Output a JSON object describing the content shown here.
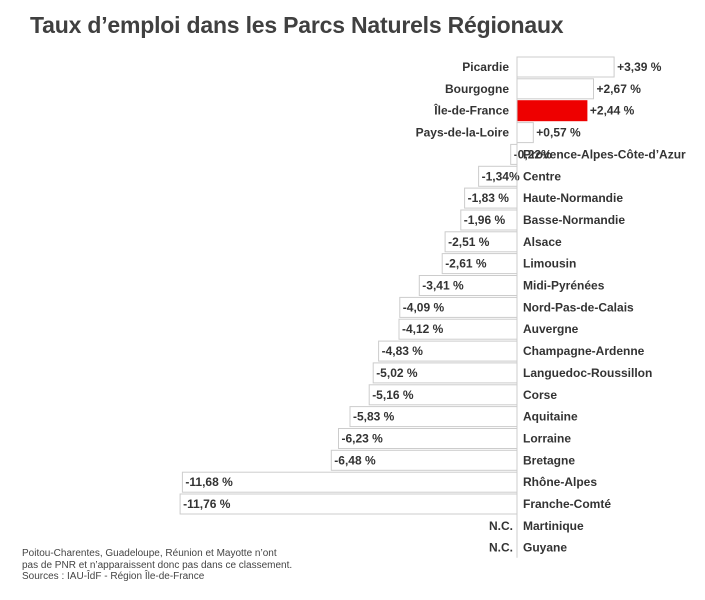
{
  "title": "Taux d’emploi dans les Parcs Naturels Régionaux",
  "colors": {
    "bar_fill": "#ffffff",
    "bar_stroke": "#cccccc",
    "highlight": "#ee0000",
    "text": "#333333"
  },
  "chart_data": {
    "type": "bar",
    "orientation": "horizontal",
    "title": "Taux d’emploi dans les Parcs Naturels Régionaux",
    "xlabel": "",
    "ylabel": "",
    "xlim": [
      -11.76,
      3.39
    ],
    "grid": false,
    "highlight": "Île-de-France",
    "categories": [
      "Picardie",
      "Bourgogne",
      "Île-de-France",
      "Pays-de-la-Loire",
      "Provence-Alpes-Côte-d’Azur",
      "Centre",
      "Haute-Normandie",
      "Basse-Normandie",
      "Alsace",
      "Limousin",
      "Midi-Pyrénées",
      "Nord-Pas-de-Calais",
      "Auvergne",
      "Champagne-Ardenne",
      "Languedoc-Roussillon",
      "Corse",
      "Aquitaine",
      "Lorraine",
      "Bretagne",
      "Rhône-Alpes",
      "Franche-Comté",
      "Martinique",
      "Guyane"
    ],
    "values": [
      3.39,
      2.67,
      2.44,
      0.57,
      -0.22,
      -1.34,
      -1.83,
      -1.96,
      -2.51,
      -2.61,
      -3.41,
      -4.09,
      -4.12,
      -4.83,
      -5.02,
      -5.16,
      -5.83,
      -6.23,
      -6.48,
      -11.68,
      -11.76,
      null,
      null
    ],
    "value_labels": [
      "+3,39 %",
      "+2,67 %",
      "+2,44 %",
      "+0,57 %",
      "-0,22%",
      "-1,34%",
      "-1,83 %",
      "-1,96 %",
      "-2,51 %",
      "-2,61 %",
      "-3,41 %",
      "-4,09 %",
      "-4,12 %",
      "-4,83 %",
      "-5,02 %",
      "-5,16 %",
      "-5,83 %",
      "-6,23 %",
      "-6,48 %",
      "-11,68 %",
      "-11,76 %",
      "N.C.",
      "N.C."
    ]
  },
  "footnote": {
    "line1": "Poitou-Charentes, Guadeloupe, Réunion et Mayotte n’ont",
    "line2": "pas de PNR et n’apparaissent donc pas dans ce classement.",
    "line3": "Sources : IAU-ÎdF - Région Île-de-France"
  }
}
